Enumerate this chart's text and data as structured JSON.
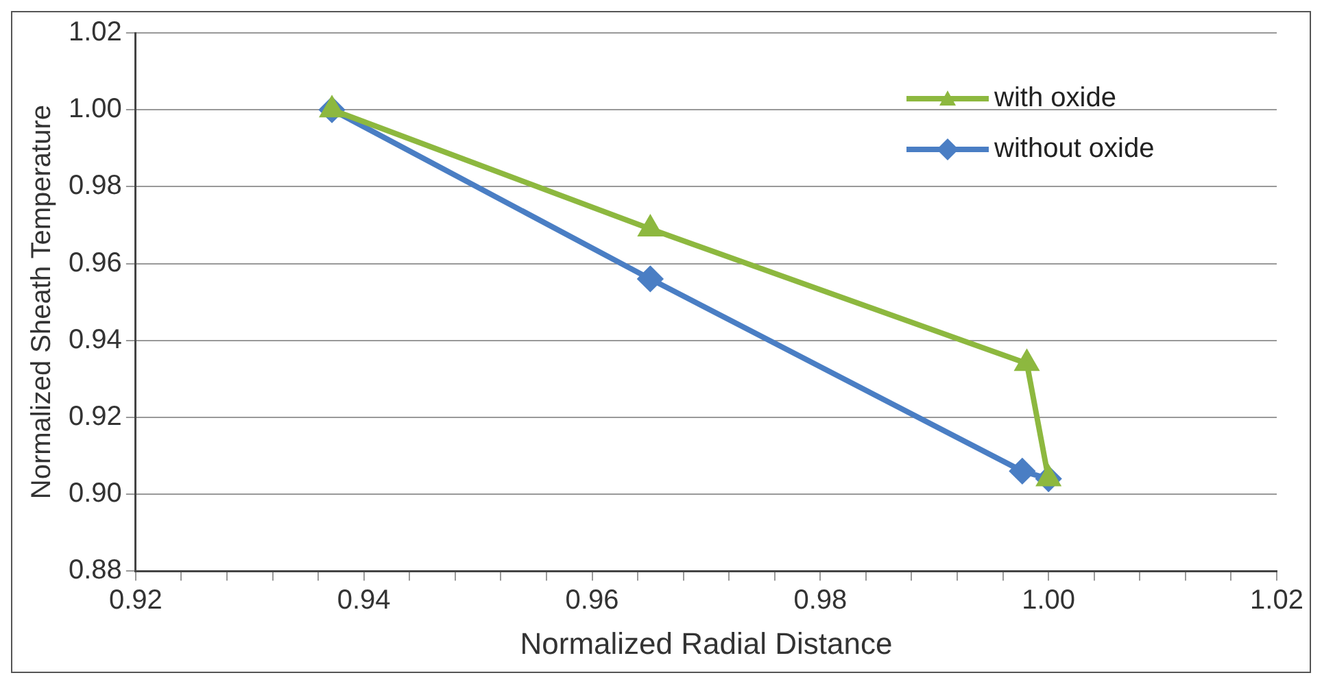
{
  "chart_data": {
    "type": "line",
    "xlabel": "Normalized Radial Distance",
    "ylabel": "Normalized Sheath Temperature",
    "series": [
      {
        "name": "with oxide",
        "color": "#8db83f",
        "marker": "triangle",
        "x": [
          0.9372,
          0.9651,
          0.9981,
          1.0
        ],
        "values": [
          1.0,
          0.969,
          0.934,
          0.904
        ]
      },
      {
        "name": "without oxide",
        "color": "#4a7ec4",
        "marker": "diamond",
        "x": [
          0.9372,
          0.9651,
          0.9977,
          1.0
        ],
        "values": [
          1.0,
          0.956,
          0.906,
          0.904
        ]
      }
    ],
    "xlim": [
      0.92,
      1.02
    ],
    "xticks": [
      0.92,
      {
        "value": 0.924,
        "label": null
      },
      {
        "value": 0.928,
        "label": null
      },
      {
        "value": 0.932,
        "label": null
      },
      {
        "value": 0.936,
        "label": null
      },
      0.94,
      {
        "value": 0.944,
        "label": null
      },
      {
        "value": 0.948,
        "label": null
      },
      {
        "value": 0.952,
        "label": null
      },
      {
        "value": 0.956,
        "label": null
      },
      0.96,
      {
        "value": 0.964,
        "label": null
      },
      {
        "value": 0.968,
        "label": null
      },
      {
        "value": 0.972,
        "label": null
      },
      {
        "value": 0.976,
        "label": null
      },
      0.98,
      {
        "value": 0.984,
        "label": null
      },
      {
        "value": 0.988,
        "label": null
      },
      {
        "value": 0.992,
        "label": null
      },
      {
        "value": 0.996,
        "label": null
      },
      {
        "value": 1.0,
        "label": "1.00"
      },
      {
        "value": 1.004,
        "label": null
      },
      {
        "value": 1.008,
        "label": null
      },
      {
        "value": 1.012,
        "label": null
      },
      {
        "value": 1.016,
        "label": null
      },
      1.02
    ],
    "ylim": [
      0.88,
      1.02
    ],
    "yticks": [
      0.88,
      {
        "value": 0.9,
        "label": "0.90"
      },
      0.92,
      0.94,
      0.96,
      0.98,
      {
        "value": 1.0,
        "label": "1.00"
      },
      1.02
    ],
    "grid": "y",
    "legend": "top right",
    "line_style": "solid"
  }
}
